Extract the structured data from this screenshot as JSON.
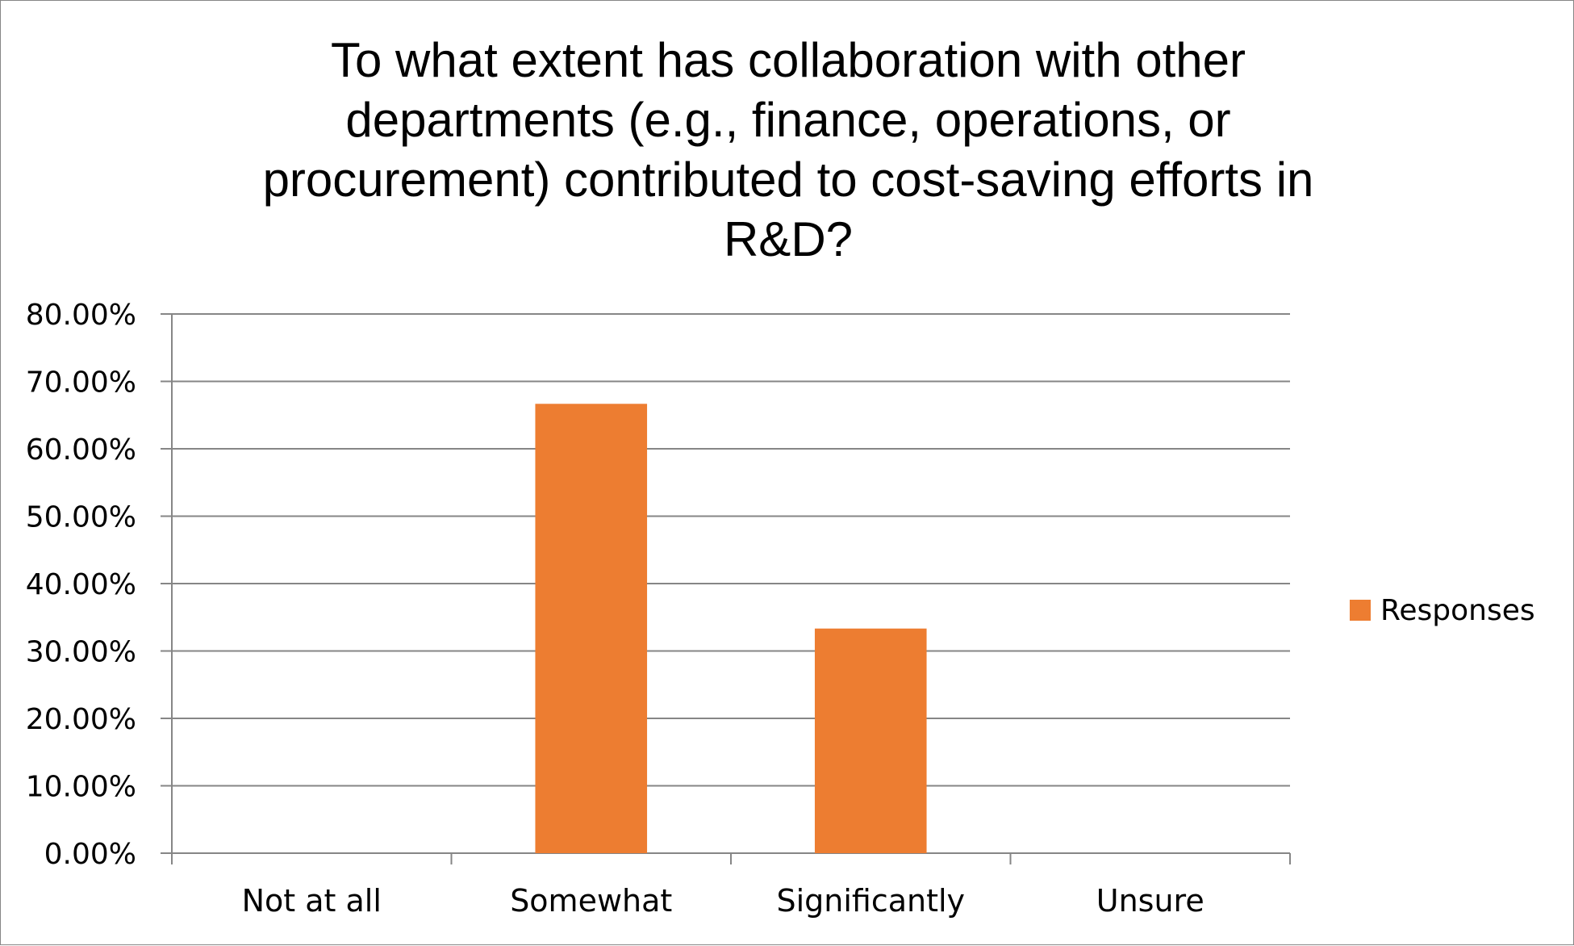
{
  "chart_data": {
    "type": "bar",
    "title_lines": [
      "To what extent has collaboration with other",
      "departments (e.g., finance, operations, or",
      "procurement) contributed to cost-saving efforts in",
      "R&D?"
    ],
    "categories": [
      "Not at all",
      "Somewhat",
      "Significantly",
      "Unsure"
    ],
    "series": [
      {
        "name": "Responses",
        "values": [
          0,
          66.67,
          33.33,
          0
        ],
        "color": "#ED7D31"
      }
    ],
    "ylim": [
      0,
      80
    ],
    "yticks": [
      0,
      10,
      20,
      30,
      40,
      50,
      60,
      70,
      80
    ],
    "ytick_labels": [
      "0.00%",
      "10.00%",
      "20.00%",
      "30.00%",
      "40.00%",
      "50.00%",
      "60.00%",
      "70.00%",
      "80.00%"
    ],
    "grid": true,
    "legend_position": "right",
    "gridline_color": "#868686",
    "axis_color": "#868686"
  }
}
